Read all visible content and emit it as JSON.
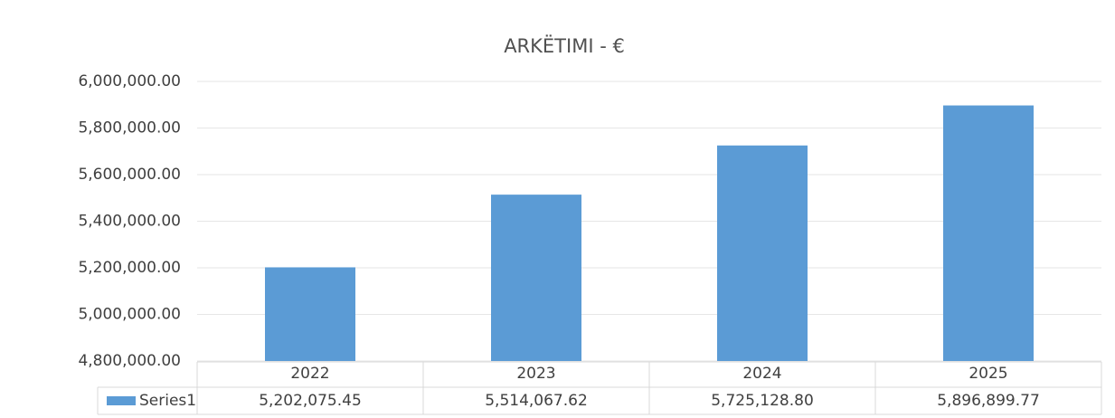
{
  "chart_data": {
    "type": "bar",
    "title": "ARKËTIMI - €",
    "categories": [
      "2022",
      "2023",
      "2024",
      "2025"
    ],
    "series": [
      {
        "name": "Series1",
        "color": "#5b9bd5",
        "values": [
          5202075.45,
          5514067.62,
          5725128.8,
          5896899.77
        ],
        "value_labels": [
          "5,202,075.45",
          "5,514,067.62",
          "5,725,128.80",
          "5,896,899.77"
        ]
      }
    ],
    "ylim": [
      4800000,
      6000000
    ],
    "yticks": [
      {
        "value": 4800000,
        "label": "4,800,000.00"
      },
      {
        "value": 5000000,
        "label": "5,000,000.00"
      },
      {
        "value": 5200000,
        "label": "5,200,000.00"
      },
      {
        "value": 5400000,
        "label": "5,400,000.00"
      },
      {
        "value": 5600000,
        "label": "5,600,000.00"
      },
      {
        "value": 5800000,
        "label": "5,800,000.00"
      },
      {
        "value": 6000000,
        "label": "6,000,000.00"
      }
    ],
    "grid": true,
    "data_table": true
  }
}
